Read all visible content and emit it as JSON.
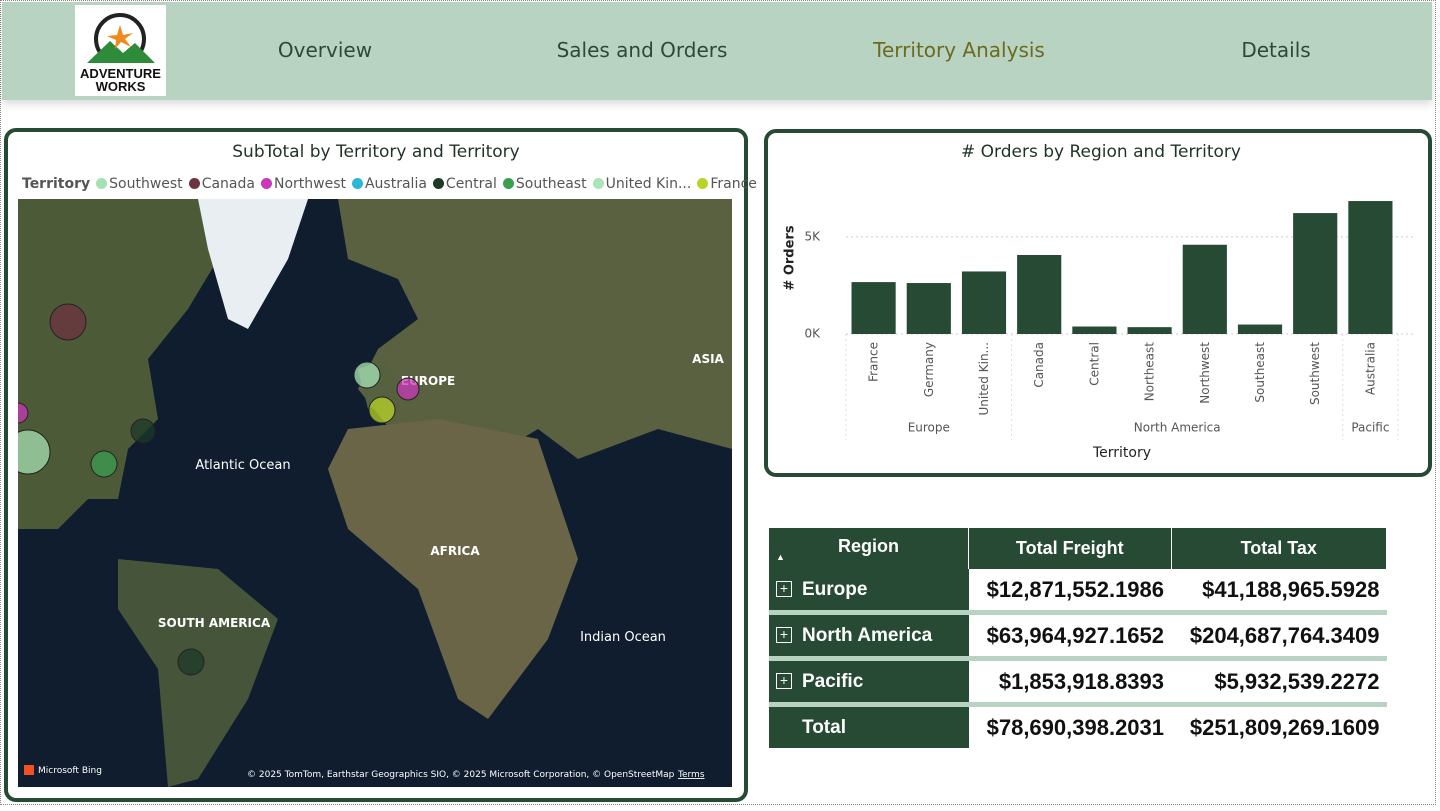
{
  "nav": {
    "logo": [
      "ADVENTURE",
      "WORKS"
    ],
    "tabs": [
      "Overview",
      "Sales and Orders",
      "Territory Analysis",
      "Details"
    ],
    "active_tab": 2
  },
  "map": {
    "title": "SubTotal by Territory and Territory",
    "legend_title": "Territory",
    "legend": [
      {
        "name": "Southwest",
        "color": "#a4e0b0"
      },
      {
        "name": "Canada",
        "color": "#6e3340"
      },
      {
        "name": "Northwest",
        "color": "#c838b8"
      },
      {
        "name": "Australia",
        "color": "#2bb7d6"
      },
      {
        "name": "Central",
        "color": "#1d3a28"
      },
      {
        "name": "Southeast",
        "color": "#3aa050"
      },
      {
        "name": "United Kin...",
        "color": "#a8e6b8"
      },
      {
        "name": "France",
        "color": "#b8d428"
      }
    ],
    "labels": [
      "EUROPE",
      "ASIA",
      "Atlantic Ocean",
      "AFRICA",
      "SOUTH AMERICA",
      "Indian Ocean"
    ],
    "brand": "Microsoft Bing",
    "attribution": "© 2025 TomTom, Earthstar Geographics SIO, © 2025 Microsoft Corporation, © OpenStreetMap",
    "terms": "Terms"
  },
  "chart_data": {
    "type": "bar",
    "title": "# Orders by Region and Territory",
    "x_label": "Territory",
    "y_label": "# Orders",
    "color": "#264a33",
    "categories": [
      "France",
      "Germany",
      "United Kin...",
      "Canada",
      "Central",
      "Northeast",
      "Northwest",
      "Southeast",
      "Southwest",
      "Australia"
    ],
    "values": [
      2672,
      2623,
      3219,
      4067,
      385,
      352,
      4594,
      486,
      6224,
      6843
    ],
    "groups": [
      {
        "name": "Europe",
        "count": 3
      },
      {
        "name": "North America",
        "count": 6
      },
      {
        "name": "Pacific",
        "count": 1
      }
    ],
    "ylim": [
      0,
      7000
    ],
    "yticks": [
      {
        "value": 0,
        "label": "0K"
      },
      {
        "value": 5000,
        "label": "5K"
      }
    ],
    "grid": true
  },
  "table": {
    "columns": [
      "Region",
      "Total Freight",
      "Total Tax"
    ],
    "rows": [
      [
        "Europe",
        "$12,871,552.1986",
        "$41,188,965.5928"
      ],
      [
        "North America",
        "$63,964,927.1652",
        "$204,687,764.3409"
      ],
      [
        "Pacific",
        "$1,853,918.8393",
        "$5,932,539.2272"
      ]
    ],
    "total": [
      "Total",
      "$78,690,398.2031",
      "$251,809,269.1609"
    ]
  }
}
